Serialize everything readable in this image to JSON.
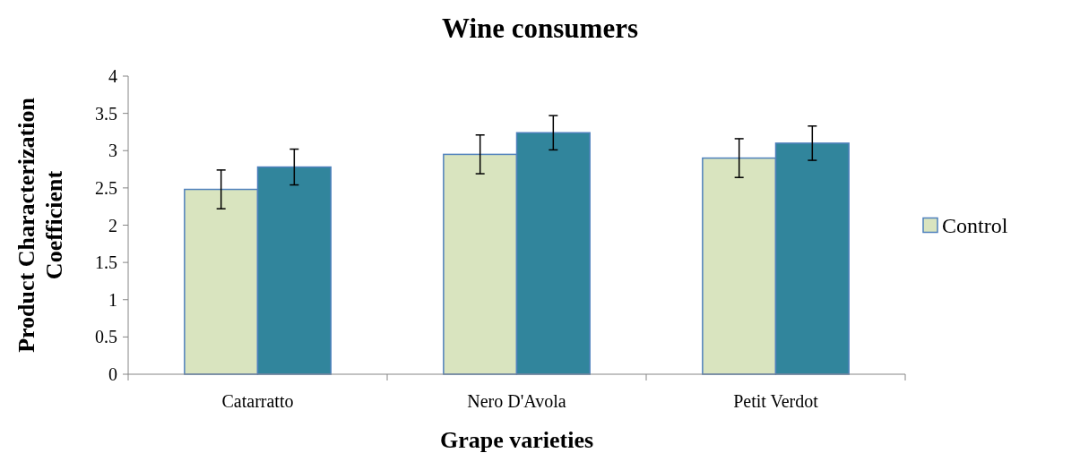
{
  "chart_data": {
    "type": "bar",
    "title": "Wine consumers",
    "xlabel": "Grape varieties",
    "ylabel": "Product Characterization Coefficient",
    "categories": [
      "Catarratto",
      "Nero D'Avola",
      "Petit Verdot"
    ],
    "series": [
      {
        "name": "Control",
        "color": "#d9e4bf",
        "values": [
          2.48,
          2.95,
          2.9
        ],
        "errors": [
          0.26,
          0.26,
          0.26
        ]
      },
      {
        "color": "#31859c",
        "values": [
          2.78,
          3.24,
          3.1
        ],
        "errors": [
          0.24,
          0.23,
          0.23
        ]
      }
    ],
    "ylim": [
      0,
      4
    ],
    "yticks": [
      0,
      0.5,
      1,
      1.5,
      2,
      2.5,
      3,
      3.5,
      4
    ],
    "legend": "right",
    "grid": false
  }
}
